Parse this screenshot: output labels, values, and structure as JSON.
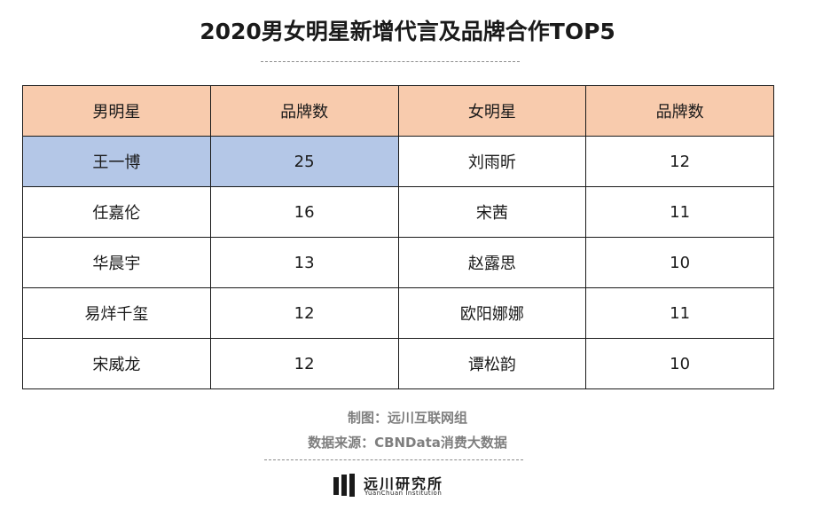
{
  "title": "2020男女明星新增代言及品牌合作TOP5",
  "chart_data": {
    "type": "table",
    "columns": [
      "男明星",
      "品牌数",
      "女明星",
      "品牌数"
    ],
    "rows": [
      [
        "王一博",
        "25",
        "刘雨昕",
        "12"
      ],
      [
        "任嘉伦",
        "16",
        "宋茜",
        "11"
      ],
      [
        "华晨宇",
        "13",
        "赵露思",
        "10"
      ],
      [
        "易烊千玺",
        "12",
        "欧阳娜娜",
        "11"
      ],
      [
        "宋威龙",
        "12",
        "谭松韵",
        "10"
      ]
    ],
    "highlight_row": 0,
    "colors": {
      "header": "#f8cbad",
      "highlight": "#b4c7e7"
    }
  },
  "footer": {
    "made_by": "制图：远川互联网组",
    "source": "数据来源：CBNData消费大数据"
  },
  "logo": {
    "name": "远川研究所",
    "subtitle": "YuanChuan Institution"
  }
}
